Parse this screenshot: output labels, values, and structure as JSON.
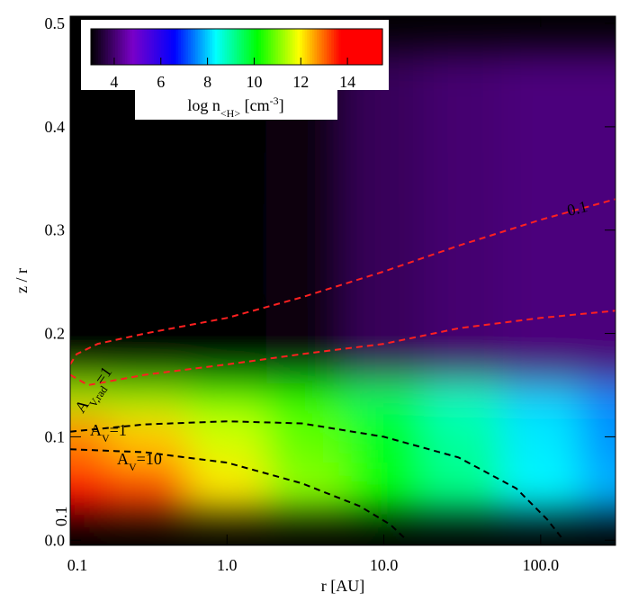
{
  "chart_data": {
    "type": "contour-map",
    "xlabel": "r [AU]",
    "ylabel": "z / r",
    "xscale": "log",
    "xlim": [
      0.1,
      300
    ],
    "ylim": [
      -0.005,
      0.507
    ],
    "xticks": [
      0.1,
      {
        "value": 1,
        "label": "1.0"
      },
      {
        "value": 10,
        "label": "10.0"
      },
      {
        "value": 100,
        "label": "100.0"
      }
    ],
    "yticks": [
      {
        "value": 0,
        "label": "0.0"
      },
      0.1,
      0.2,
      0.3,
      0.4,
      0.5
    ],
    "colormap": [
      "#000000",
      "#7a00c8",
      "#0000ff",
      "#00ffff",
      "#00ff00",
      "#ffff00",
      "#ff0000",
      "#ff0000"
    ],
    "clim": [
      3,
      15.5
    ],
    "colorbar": {
      "ticks": [
        4,
        6,
        8,
        10,
        12,
        14
      ],
      "label": [
        {
          "text": "log n"
        },
        {
          "text": "<H>",
          "shift": "sub"
        },
        {
          "text": " [cm"
        },
        {
          "text": "-3",
          "shift": "super"
        },
        {
          "text": "]"
        }
      ]
    },
    "field": {
      "r": [
        0.1,
        0.32,
        1,
        3.2,
        10,
        32,
        100,
        320
      ],
      "z": [
        0,
        0.05,
        0.1,
        0.15,
        0.2,
        0.25,
        0.3,
        0.35,
        0.4,
        0.45,
        0.5
      ],
      "values": [
        [
          14.6,
          13.6,
          12.4,
          11.3,
          10.3,
          9.3,
          8.4,
          7.8
        ],
        [
          14.0,
          13.2,
          12.1,
          11.1,
          10.1,
          9.2,
          8.3,
          7.8
        ],
        [
          12.8,
          12.3,
          11.6,
          10.8,
          9.9,
          9.0,
          8.2,
          7.6
        ],
        [
          11.2,
          11.0,
          10.6,
          10.1,
          9.4,
          8.7,
          8.0,
          7.5
        ],
        [
          9.4,
          9.6,
          9.5,
          9.2,
          8.7,
          8.2,
          7.6,
          7.2
        ],
        [
          7.2,
          7.8,
          8.0,
          8.0,
          7.8,
          7.5,
          7.1,
          6.8
        ],
        [
          3.5,
          5.8,
          6.5,
          6.8,
          6.8,
          6.6,
          6.4,
          6.2
        ],
        [
          3,
          4.2,
          5.0,
          5.6,
          5.8,
          5.8,
          5.7,
          5.6
        ],
        [
          3,
          3,
          3.8,
          4.5,
          4.8,
          5.0,
          5.0,
          5.0
        ],
        [
          3,
          3,
          3,
          3.8,
          4.2,
          4.4,
          4.5,
          4.5
        ],
        [
          3,
          3,
          3,
          3.1,
          3.8,
          4.0,
          4.1,
          4.1
        ]
      ]
    },
    "contours": [
      {
        "color": "#ff2020",
        "x": [
          0.1,
          0.11,
          0.15,
          0.3,
          1,
          3,
          10,
          30,
          100,
          300
        ],
        "y": [
          0.17,
          0.18,
          0.19,
          0.2,
          0.215,
          0.235,
          0.26,
          0.285,
          0.31,
          0.33
        ]
      },
      {
        "color": "#ff2020",
        "x": [
          0.1,
          0.13,
          0.3,
          1,
          3,
          10,
          30,
          100,
          300
        ],
        "y": [
          0.16,
          0.15,
          0.16,
          0.17,
          0.18,
          0.19,
          0.205,
          0.215,
          0.222
        ]
      },
      {
        "color": "#000000",
        "x": [
          0.1,
          0.3,
          1,
          3,
          10,
          30,
          70,
          110,
          140
        ],
        "y": [
          0.105,
          0.112,
          0.115,
          0.113,
          0.1,
          0.08,
          0.05,
          0.02,
          0.0
        ]
      },
      {
        "color": "#000000",
        "x": [
          0.1,
          0.3,
          1,
          3,
          7,
          11,
          14
        ],
        "y": [
          0.088,
          0.085,
          0.075,
          0.055,
          0.033,
          0.015,
          0.0
        ]
      }
    ],
    "annotations": [
      {
        "color": "#ff2020",
        "parts": [
          {
            "text": "0.1"
          }
        ]
      },
      {
        "color": "#ff2020",
        "parts": [
          {
            "text": "0.1"
          }
        ]
      },
      {
        "color": "#ff2020",
        "parts": [
          {
            "text": "A"
          },
          {
            "text": "V,rad",
            "shift": "sub"
          },
          {
            "text": "=1"
          }
        ]
      },
      {
        "color": "#ff2020",
        "parts": [
          {
            "text": "0.1"
          }
        ]
      },
      {
        "color": "#000000",
        "parts": [
          {
            "text": "A"
          },
          {
            "text": "V",
            "shift": "sub"
          },
          {
            "text": "=1"
          }
        ]
      },
      {
        "color": "#000000",
        "parts": [
          {
            "text": "A"
          },
          {
            "text": "V",
            "shift": "sub"
          },
          {
            "text": "=10"
          }
        ]
      }
    ]
  }
}
